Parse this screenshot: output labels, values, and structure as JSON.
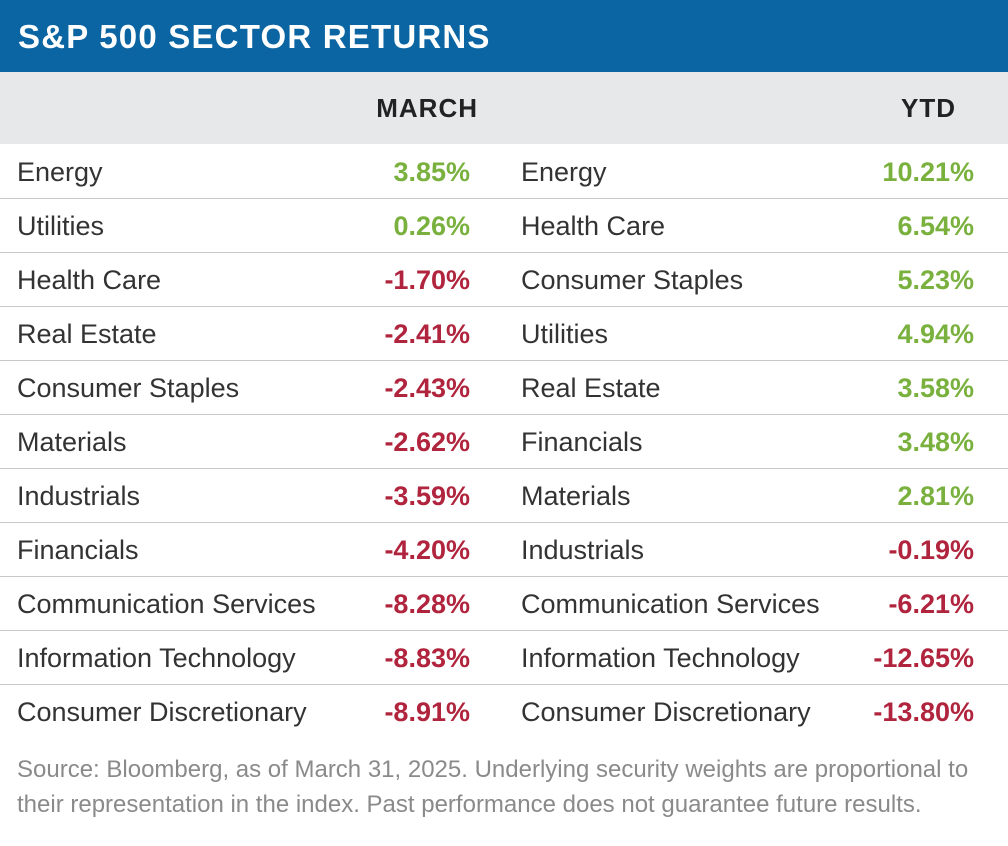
{
  "title": "S&P 500 SECTOR RETURNS",
  "colors": {
    "title_bg": "#0a65a2",
    "header_bg": "#e7e8ea",
    "positive": "#7ab13e",
    "negative": "#b0243e"
  },
  "chart_data": {
    "type": "table",
    "title": "S&P 500 SECTOR RETURNS",
    "columns": [
      "MARCH",
      "YTD"
    ],
    "march": [
      {
        "sector": "Energy",
        "value": "3.85%"
      },
      {
        "sector": "Utilities",
        "value": "0.26%"
      },
      {
        "sector": "Health Care",
        "value": "-1.70%"
      },
      {
        "sector": "Real Estate",
        "value": "-2.41%"
      },
      {
        "sector": "Consumer Staples",
        "value": "-2.43%"
      },
      {
        "sector": "Materials",
        "value": "-2.62%"
      },
      {
        "sector": "Industrials",
        "value": "-3.59%"
      },
      {
        "sector": "Financials",
        "value": "-4.20%"
      },
      {
        "sector": "Communication Services",
        "value": "-8.28%"
      },
      {
        "sector": "Information Technology",
        "value": "-8.83%"
      },
      {
        "sector": "Consumer Discretionary",
        "value": "-8.91%"
      }
    ],
    "ytd": [
      {
        "sector": "Energy",
        "value": "10.21%"
      },
      {
        "sector": "Health Care",
        "value": "6.54%"
      },
      {
        "sector": "Consumer Staples",
        "value": "5.23%"
      },
      {
        "sector": "Utilities",
        "value": "4.94%"
      },
      {
        "sector": "Real Estate",
        "value": "3.58%"
      },
      {
        "sector": "Financials",
        "value": "3.48%"
      },
      {
        "sector": "Materials",
        "value": "2.81%"
      },
      {
        "sector": "Industrials",
        "value": "-0.19%"
      },
      {
        "sector": "Communication Services",
        "value": "-6.21%"
      },
      {
        "sector": "Information Technology",
        "value": "-12.65%"
      },
      {
        "sector": "Consumer Discretionary",
        "value": "-13.80%"
      }
    ]
  },
  "footnote": "Source: Bloomberg, as of March 31, 2025. Underlying security weights are proportional to their representation in the index. Past performance does not guarantee future results."
}
